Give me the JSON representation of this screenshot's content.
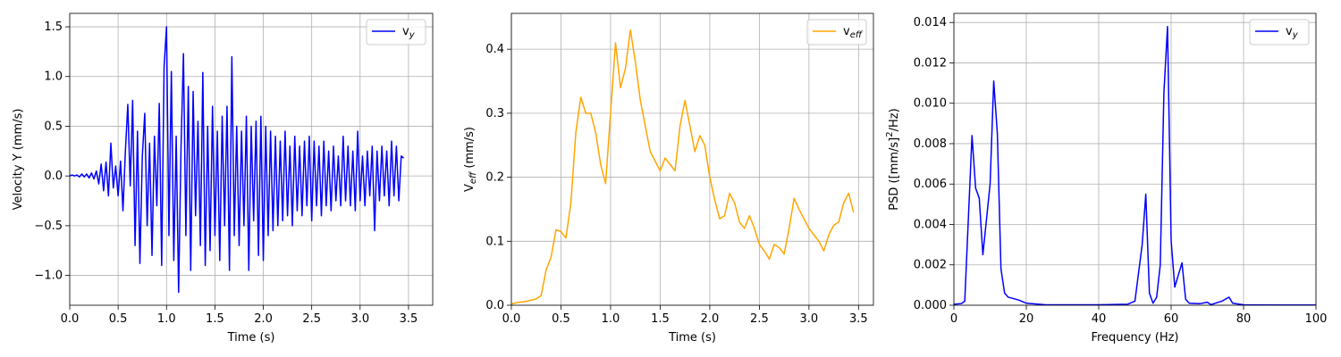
{
  "chart_data": [
    {
      "type": "line",
      "xlabel": "Time (s)",
      "ylabel": "Velocity Y (mm/s)",
      "grid": true,
      "legend": "upper right",
      "xlim": [
        0,
        3.75
      ],
      "ylim": [
        -1.3,
        1.635
      ],
      "xticks": [
        {
          "value": 0,
          "label": "0.0"
        },
        0.5,
        {
          "value": 1,
          "label": "1.0"
        },
        1.5,
        {
          "value": 2,
          "label": "2.0"
        },
        2.5,
        {
          "value": 3,
          "label": "3.0"
        },
        3.5
      ],
      "yticks": [
        {
          "value": -1,
          "label": "−1.0"
        },
        {
          "value": -0.5,
          "label": "−0.5"
        },
        {
          "value": 0,
          "label": "0.0"
        },
        0.5,
        {
          "value": 1,
          "label": "1.0"
        },
        1.5
      ],
      "x": [
        0,
        0.025,
        0.05,
        0.075,
        0.1,
        0.125,
        0.15,
        0.175,
        0.2,
        0.225,
        0.25,
        0.275,
        0.3,
        0.325,
        0.35,
        0.375,
        0.4,
        0.425,
        0.45,
        0.475,
        0.5,
        0.525,
        0.55,
        0.575,
        0.6,
        0.625,
        0.65,
        0.675,
        0.7,
        0.725,
        0.75,
        0.775,
        0.8,
        0.825,
        0.85,
        0.875,
        0.9,
        0.925,
        0.95,
        0.975,
        1,
        1.025,
        1.05,
        1.075,
        1.1,
        1.125,
        1.15,
        1.175,
        1.2,
        1.225,
        1.25,
        1.275,
        1.3,
        1.325,
        1.35,
        1.375,
        1.4,
        1.425,
        1.45,
        1.475,
        1.5,
        1.525,
        1.55,
        1.575,
        1.6,
        1.625,
        1.65,
        1.675,
        1.7,
        1.725,
        1.75,
        1.775,
        1.8,
        1.825,
        1.85,
        1.875,
        1.9,
        1.925,
        1.95,
        1.975,
        2,
        2.025,
        2.05,
        2.075,
        2.1,
        2.125,
        2.15,
        2.175,
        2.2,
        2.225,
        2.25,
        2.275,
        2.3,
        2.325,
        2.35,
        2.375,
        2.4,
        2.425,
        2.45,
        2.475,
        2.5,
        2.525,
        2.55,
        2.575,
        2.6,
        2.625,
        2.65,
        2.675,
        2.7,
        2.725,
        2.75,
        2.775,
        2.8,
        2.825,
        2.85,
        2.875,
        2.9,
        2.925,
        2.95,
        2.975,
        3,
        3.025,
        3.05,
        3.075,
        3.1,
        3.125,
        3.15,
        3.175,
        3.2,
        3.225,
        3.25,
        3.275,
        3.3,
        3.325,
        3.35,
        3.375,
        3.4,
        3.425,
        3.45
      ],
      "series": [
        {
          "name": "v_{y}",
          "color": "#0000ff",
          "values": [
            0,
            0.01,
            0,
            0.01,
            -0.01,
            0.02,
            -0.01,
            0.02,
            -0.02,
            0.03,
            -0.03,
            0.05,
            -0.08,
            0.12,
            -0.15,
            0.14,
            -0.2,
            0.33,
            -0.12,
            0.1,
            -0.2,
            0.15,
            -0.35,
            0.25,
            0.72,
            -0.1,
            0.76,
            -0.7,
            0.45,
            -0.88,
            0.2,
            0.63,
            -0.5,
            0.33,
            -0.8,
            0.4,
            -0.3,
            0.73,
            -0.9,
            1.1,
            1.5,
            -0.6,
            1.05,
            -0.85,
            0.4,
            -1.17,
            0.3,
            1.23,
            -0.6,
            0.9,
            -0.95,
            0.85,
            -0.4,
            0.55,
            -0.7,
            1.04,
            -0.9,
            0.5,
            -0.75,
            0.7,
            -0.6,
            0.45,
            -0.85,
            0.6,
            -0.5,
            0.7,
            -0.95,
            1.2,
            -0.6,
            0.5,
            -0.7,
            0.45,
            -0.5,
            0.6,
            -0.95,
            0.5,
            -0.45,
            0.55,
            -0.8,
            0.6,
            -0.85,
            0.5,
            -0.6,
            0.45,
            -0.55,
            0.4,
            -0.5,
            0.35,
            -0.45,
            0.45,
            -0.4,
            0.3,
            -0.5,
            0.4,
            -0.35,
            0.3,
            -0.4,
            0.35,
            -0.3,
            0.4,
            -0.45,
            0.35,
            -0.3,
            0.3,
            -0.4,
            0.35,
            -0.3,
            0.25,
            -0.35,
            0.3,
            -0.25,
            0.2,
            -0.3,
            0.4,
            -0.25,
            0.3,
            -0.3,
            0.25,
            -0.35,
            0.45,
            -0.25,
            0.2,
            -0.3,
            0.25,
            -0.2,
            0.3,
            -0.55,
            0.25,
            -0.25,
            0.3,
            -0.2,
            0.25,
            -0.3,
            0.35,
            -0.2,
            0.3,
            -0.25,
            0.2,
            0.18
          ]
        }
      ]
    },
    {
      "type": "line",
      "xlabel": "Time (s)",
      "ylabel": "V_{eff} (mm/s)",
      "grid": true,
      "legend": "upper right",
      "xlim": [
        0,
        3.65
      ],
      "ylim": [
        0,
        0.456
      ],
      "xticks": [
        {
          "value": 0,
          "label": "0.0"
        },
        0.5,
        {
          "value": 1,
          "label": "1.0"
        },
        1.5,
        {
          "value": 2,
          "label": "2.0"
        },
        2.5,
        {
          "value": 3,
          "label": "3.0"
        },
        3.5
      ],
      "yticks": [
        {
          "value": 0,
          "label": "0.0"
        },
        0.1,
        0.2,
        0.3,
        0.4
      ],
      "x": [
        0,
        0.05,
        0.1,
        0.15,
        0.2,
        0.25,
        0.3,
        0.35,
        0.4,
        0.45,
        0.5,
        0.55,
        0.6,
        0.65,
        0.7,
        0.75,
        0.8,
        0.85,
        0.9,
        0.95,
        1,
        1.05,
        1.1,
        1.15,
        1.2,
        1.25,
        1.3,
        1.35,
        1.4,
        1.45,
        1.5,
        1.55,
        1.6,
        1.65,
        1.7,
        1.75,
        1.8,
        1.85,
        1.9,
        1.95,
        2,
        2.05,
        2.1,
        2.15,
        2.2,
        2.25,
        2.3,
        2.35,
        2.4,
        2.45,
        2.5,
        2.55,
        2.6,
        2.65,
        2.7,
        2.75,
        2.8,
        2.85,
        2.9,
        2.95,
        3,
        3.05,
        3.1,
        3.15,
        3.2,
        3.25,
        3.3,
        3.35,
        3.4,
        3.45
      ],
      "series": [
        {
          "name": "v_{eff}",
          "color": "#ffa500",
          "values": [
            0.002,
            0.004,
            0.005,
            0.006,
            0.008,
            0.01,
            0.015,
            0.055,
            0.075,
            0.118,
            0.115,
            0.105,
            0.16,
            0.27,
            0.325,
            0.3,
            0.3,
            0.27,
            0.22,
            0.19,
            0.3,
            0.41,
            0.34,
            0.37,
            0.43,
            0.38,
            0.32,
            0.28,
            0.24,
            0.225,
            0.21,
            0.23,
            0.22,
            0.21,
            0.28,
            0.32,
            0.28,
            0.24,
            0.265,
            0.25,
            0.2,
            0.165,
            0.135,
            0.14,
            0.175,
            0.16,
            0.13,
            0.12,
            0.14,
            0.12,
            0.095,
            0.085,
            0.072,
            0.095,
            0.09,
            0.08,
            0.12,
            0.167,
            0.15,
            0.135,
            0.12,
            0.11,
            0.1,
            0.085,
            0.11,
            0.125,
            0.13,
            0.16,
            0.175,
            0.145
          ]
        }
      ]
    },
    {
      "type": "line",
      "xlabel": "Frequency (Hz)",
      "ylabel": "PSD ([mm/s]^{2}/Hz)",
      "grid": true,
      "legend": "upper right",
      "xlim": [
        0,
        100
      ],
      "ylim": [
        0,
        0.01445
      ],
      "xticks": [
        0,
        20,
        40,
        60,
        80,
        100
      ],
      "yticks": [
        {
          "value": 0,
          "label": "0.000"
        },
        0.002,
        0.004,
        0.006,
        0.008,
        {
          "value": 0.01,
          "label": "0.010"
        },
        0.012,
        0.014
      ],
      "x": [
        0,
        2,
        3,
        5,
        6,
        7,
        8,
        10,
        11,
        12,
        13,
        14,
        15,
        17,
        18,
        20,
        25,
        30,
        40,
        48,
        50,
        52,
        53,
        54,
        55,
        56,
        57,
        58,
        59,
        60,
        61,
        62,
        63,
        64,
        65,
        68,
        70,
        71,
        74,
        76,
        77,
        80,
        90,
        100
      ],
      "series": [
        {
          "name": "v_{y}",
          "color": "#0000ff",
          "values": [
            5e-05,
            8e-05,
            0.0002,
            0.0084,
            0.0058,
            0.0053,
            0.0025,
            0.006,
            0.0111,
            0.0085,
            0.0018,
            0.0006,
            0.0004,
            0.0003,
            0.00025,
            0.0001,
            3e-05,
            2e-05,
            2e-05,
            5e-05,
            0.0002,
            0.003,
            0.0055,
            0.0006,
            0.0001,
            0.0004,
            0.002,
            0.0105,
            0.0138,
            0.0032,
            0.0009,
            0.0015,
            0.0021,
            0.0003,
            0.0001,
            8e-05,
            0.00015,
            3e-05,
            0.0002,
            0.0004,
            0.0001,
            2e-05,
            1e-05,
            1e-05
          ]
        }
      ]
    }
  ]
}
